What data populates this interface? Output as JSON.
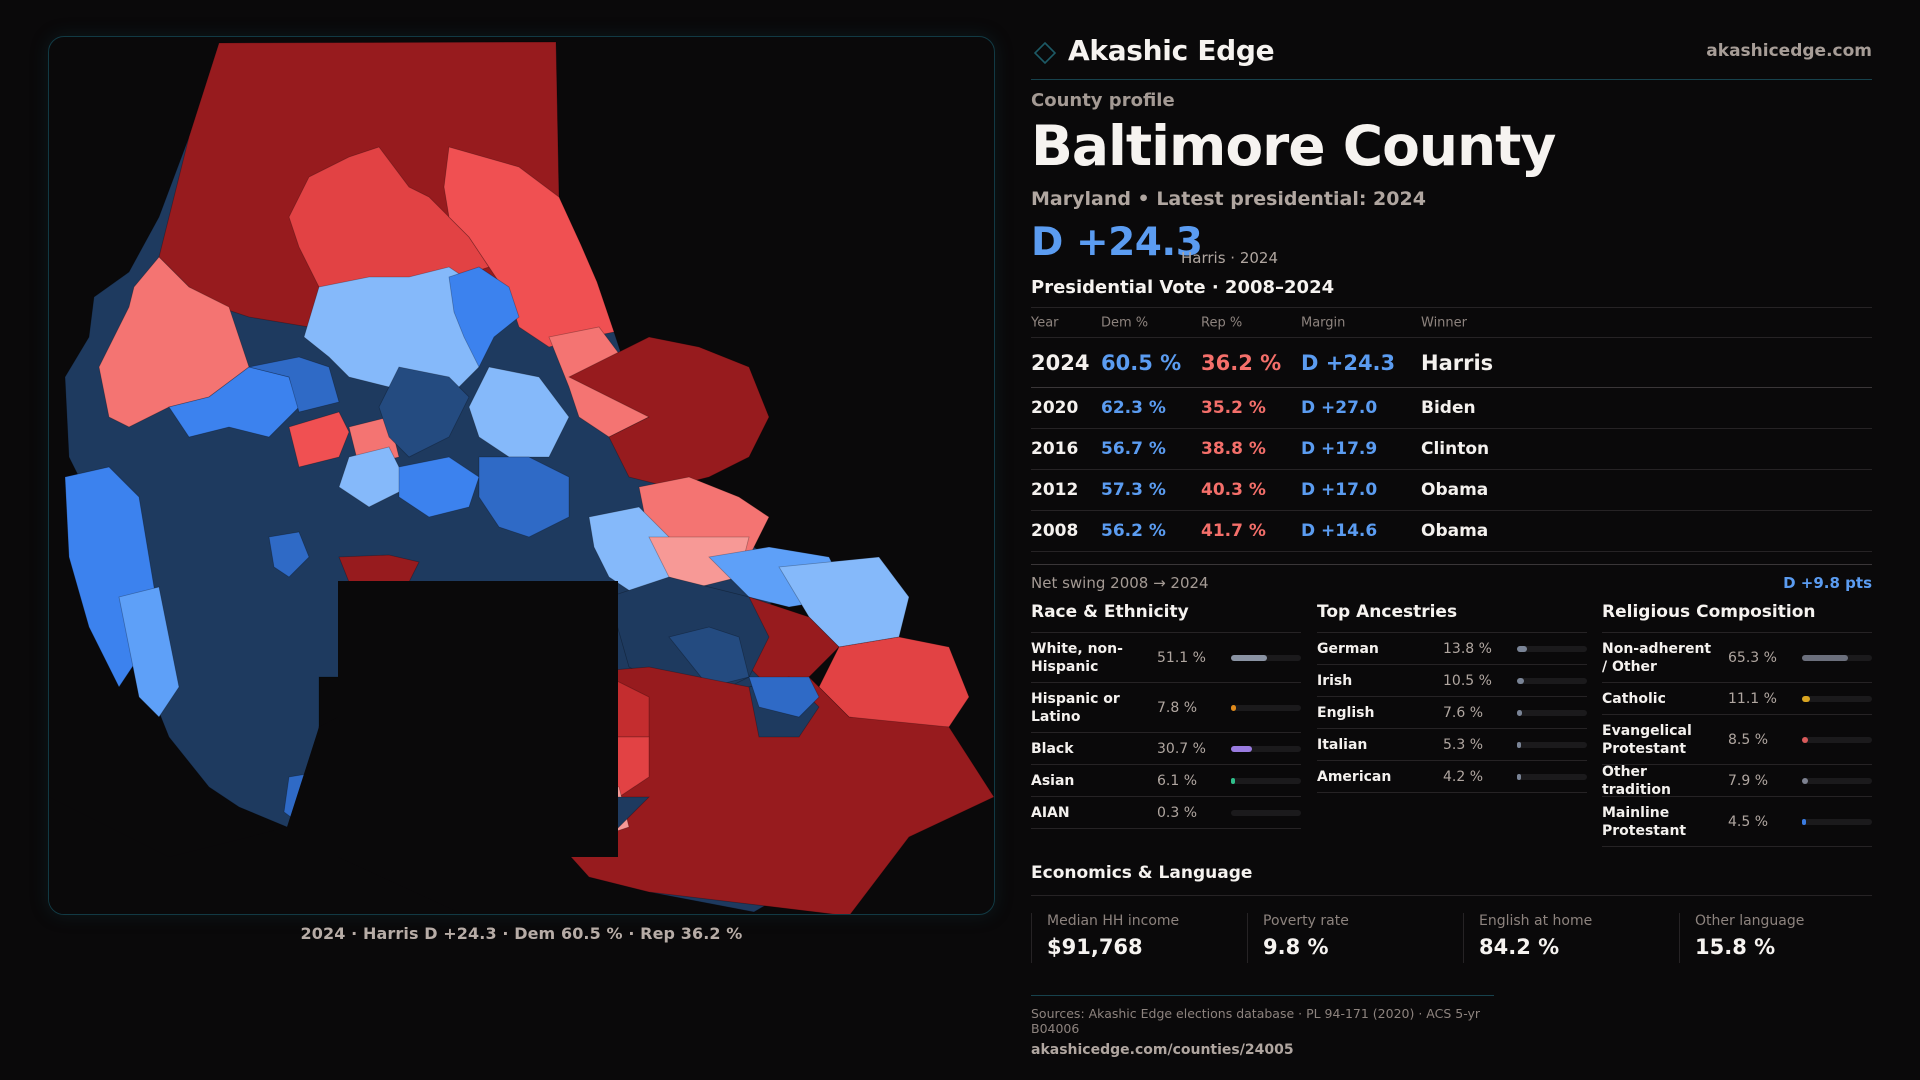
{
  "brand": {
    "name": "Akashic Edge",
    "link": "akashicedge.com",
    "logo_icon": "diamond-outline-icon",
    "accent": "#17424d"
  },
  "profile": {
    "eyebrow": "County profile",
    "title": "Baltimore County",
    "subtitle": "Maryland • Latest presidential: 2024",
    "headline_margin": "D +24.3",
    "headline_note": "Harris · 2024"
  },
  "vote": {
    "section_label": "Presidential Vote · 2008–2024",
    "columns": [
      "Year",
      "Dem %",
      "Rep %",
      "Margin",
      "Winner"
    ],
    "rows": [
      {
        "year": "2024",
        "dem": "60.5 %",
        "rep": "36.2 %",
        "margin": "D +24.3",
        "winner": "Harris"
      },
      {
        "year": "2020",
        "dem": "62.3 %",
        "rep": "35.2 %",
        "margin": "D +27.0",
        "winner": "Biden"
      },
      {
        "year": "2016",
        "dem": "56.7 %",
        "rep": "38.8 %",
        "margin": "D +17.9",
        "winner": "Clinton"
      },
      {
        "year": "2012",
        "dem": "57.3 %",
        "rep": "40.3 %",
        "margin": "D +17.0",
        "winner": "Obama"
      },
      {
        "year": "2008",
        "dem": "56.2 %",
        "rep": "41.7 %",
        "margin": "D +14.6",
        "winner": "Obama"
      }
    ],
    "swing_label": "Net swing 2008 → 2024",
    "swing_value": "D +9.8 pts",
    "colors": {
      "dem": "#5b9cf1",
      "rep": "#f46f6a"
    }
  },
  "race": {
    "title": "Race & Ethnicity",
    "items": [
      {
        "label": "White, non-Hispanic",
        "value": "51.1 %",
        "pct": 51.1,
        "color": "#8a93a3"
      },
      {
        "label": "Hispanic or Latino",
        "value": "7.8 %",
        "pct": 7.8,
        "color": "#e08a1b"
      },
      {
        "label": "Black",
        "value": "30.7 %",
        "pct": 30.7,
        "color": "#9a7ce0"
      },
      {
        "label": "Asian",
        "value": "6.1 %",
        "pct": 6.1,
        "color": "#2fbf8a"
      },
      {
        "label": "AIAN",
        "value": "0.3 %",
        "pct": 0.3,
        "color": "#8a93a3"
      }
    ]
  },
  "ancestry": {
    "title": "Top Ancestries",
    "items": [
      {
        "label": "German",
        "value": "13.8 %",
        "pct": 13.8,
        "color": "#7a8496"
      },
      {
        "label": "Irish",
        "value": "10.5 %",
        "pct": 10.5,
        "color": "#7a8496"
      },
      {
        "label": "English",
        "value": "7.6 %",
        "pct": 7.6,
        "color": "#7a8496"
      },
      {
        "label": "Italian",
        "value": "5.3 %",
        "pct": 5.3,
        "color": "#7a8496"
      },
      {
        "label": "American",
        "value": "4.2 %",
        "pct": 4.2,
        "color": "#7a8496"
      }
    ]
  },
  "religion": {
    "title": "Religious Composition",
    "items": [
      {
        "label": "Non-adherent / Other",
        "value": "65.3 %",
        "pct": 65.3,
        "color": "#6b6f7c"
      },
      {
        "label": "Catholic",
        "value": "11.1 %",
        "pct": 11.1,
        "color": "#d9a521"
      },
      {
        "label": "Evangelical Protestant",
        "value": "8.5 %",
        "pct": 8.5,
        "color": "#d95a5a"
      },
      {
        "label": "Other tradition",
        "value": "7.9 %",
        "pct": 7.9,
        "color": "#7d8190"
      },
      {
        "label": "Mainline Protestant",
        "value": "4.5 %",
        "pct": 4.5,
        "color": "#3a7be0"
      }
    ]
  },
  "economics": {
    "title": "Economics & Language",
    "cards": [
      {
        "label": "Median HH income",
        "value": "$91,768"
      },
      {
        "label": "Poverty rate",
        "value": "9.8 %"
      },
      {
        "label": "English at home",
        "value": "84.2 %"
      },
      {
        "label": "Other language",
        "value": "15.8 %"
      }
    ]
  },
  "sources": {
    "text": "Sources: Akashic Edge elections database · PL 94-171 (2020) · ACS 5-yr B04006",
    "url": "akashicedge.com/counties/24005"
  },
  "map": {
    "caption": "2024 · Harris D +24.3 · Dem 60.5 % · Rep 36.2 %",
    "palette": {
      "rep_strong": "#971b1e",
      "rep_mid": "#c42d2f",
      "rep_lean": "#e24244",
      "rep_light": "#f05052",
      "rep_tilt": "#f47472",
      "rep_pale": "#f79996",
      "dem_strong": "#1e3a5f",
      "dem_mid": "#244b80",
      "dem_lean": "#2f6ac6",
      "dem_bright": "#3c82ee",
      "dem_light": "#5ea0f8",
      "dem_pale": "#85b9fa"
    }
  }
}
